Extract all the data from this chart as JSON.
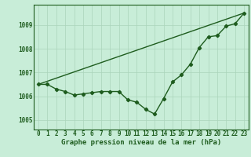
{
  "xlabel": "Graphe pression niveau de la mer (hPa)",
  "bg_color": "#c8edd8",
  "line_color": "#1e5c1e",
  "grid_color": "#aad4bb",
  "ylim": [
    1004.6,
    1009.85
  ],
  "xlim": [
    -0.5,
    23.5
  ],
  "hours": [
    0,
    1,
    2,
    3,
    4,
    5,
    6,
    7,
    8,
    9,
    10,
    11,
    12,
    13,
    14,
    15,
    16,
    17,
    18,
    19,
    20,
    21,
    22,
    23
  ],
  "pressure": [
    1006.5,
    1006.5,
    1006.3,
    1006.2,
    1006.05,
    1006.1,
    1006.15,
    1006.2,
    1006.2,
    1006.2,
    1005.85,
    1005.75,
    1005.45,
    1005.25,
    1005.9,
    1006.6,
    1006.9,
    1007.35,
    1008.05,
    1008.5,
    1008.55,
    1008.95,
    1009.05,
    1009.5
  ],
  "trend": [
    1006.5,
    1009.5
  ],
  "trend_x": [
    0,
    23
  ],
  "marker": "D",
  "marker_size": 2.2,
  "line_width": 1.0,
  "xlabel_fontsize": 6.5,
  "tick_fontsize": 5.5
}
